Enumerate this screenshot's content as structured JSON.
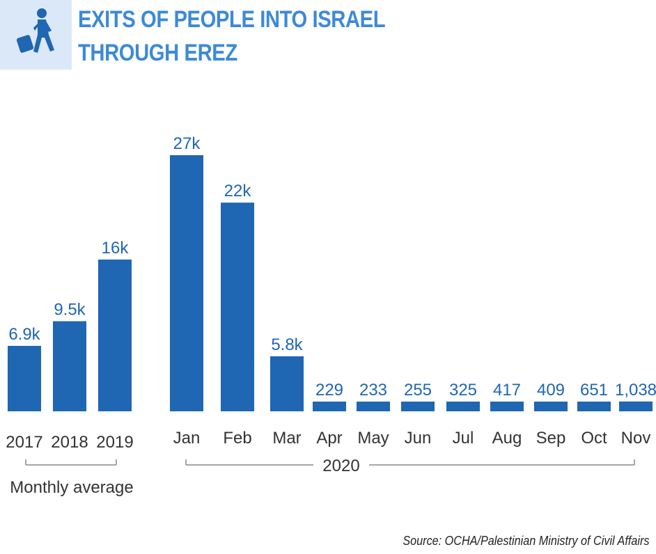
{
  "title_lines": [
    "EXITS OF PEOPLE INTO ISRAEL",
    "THROUGH EREZ"
  ],
  "icon": "walking-person-with-bag-icon",
  "colors": {
    "bar": "#1f66b3",
    "title": "#3d8ad6",
    "label": "#1f66b3",
    "axis_text": "#333333",
    "bracket": "#888888",
    "icon_bg": "#dbe8f7"
  },
  "source": "Source: OCHA/Palestinian Ministry of Civil Affairs",
  "chart_data": {
    "type": "bar",
    "title": "EXITS OF PEOPLE INTO ISRAEL THROUGH EREZ",
    "xlabel": "",
    "ylabel": "",
    "grid": false,
    "groups": [
      {
        "label": "Monthly average",
        "categories": [
          "2017",
          "2018",
          "2019"
        ],
        "values": [
          6900,
          9500,
          16000
        ],
        "value_labels": [
          "6.9k",
          "9.5k",
          "16k"
        ]
      },
      {
        "label": "2020",
        "categories": [
          "Jan",
          "Feb",
          "Mar",
          "Apr",
          "May",
          "Jun",
          "Jul",
          "Aug",
          "Sep",
          "Oct",
          "Nov"
        ],
        "values": [
          27000,
          22000,
          5800,
          229,
          233,
          255,
          325,
          417,
          409,
          651,
          1038
        ],
        "value_labels": [
          "27k",
          "22k",
          "5.8k",
          "229",
          "233",
          "255",
          "325",
          "417",
          "409",
          "651",
          "1,038"
        ]
      }
    ]
  }
}
